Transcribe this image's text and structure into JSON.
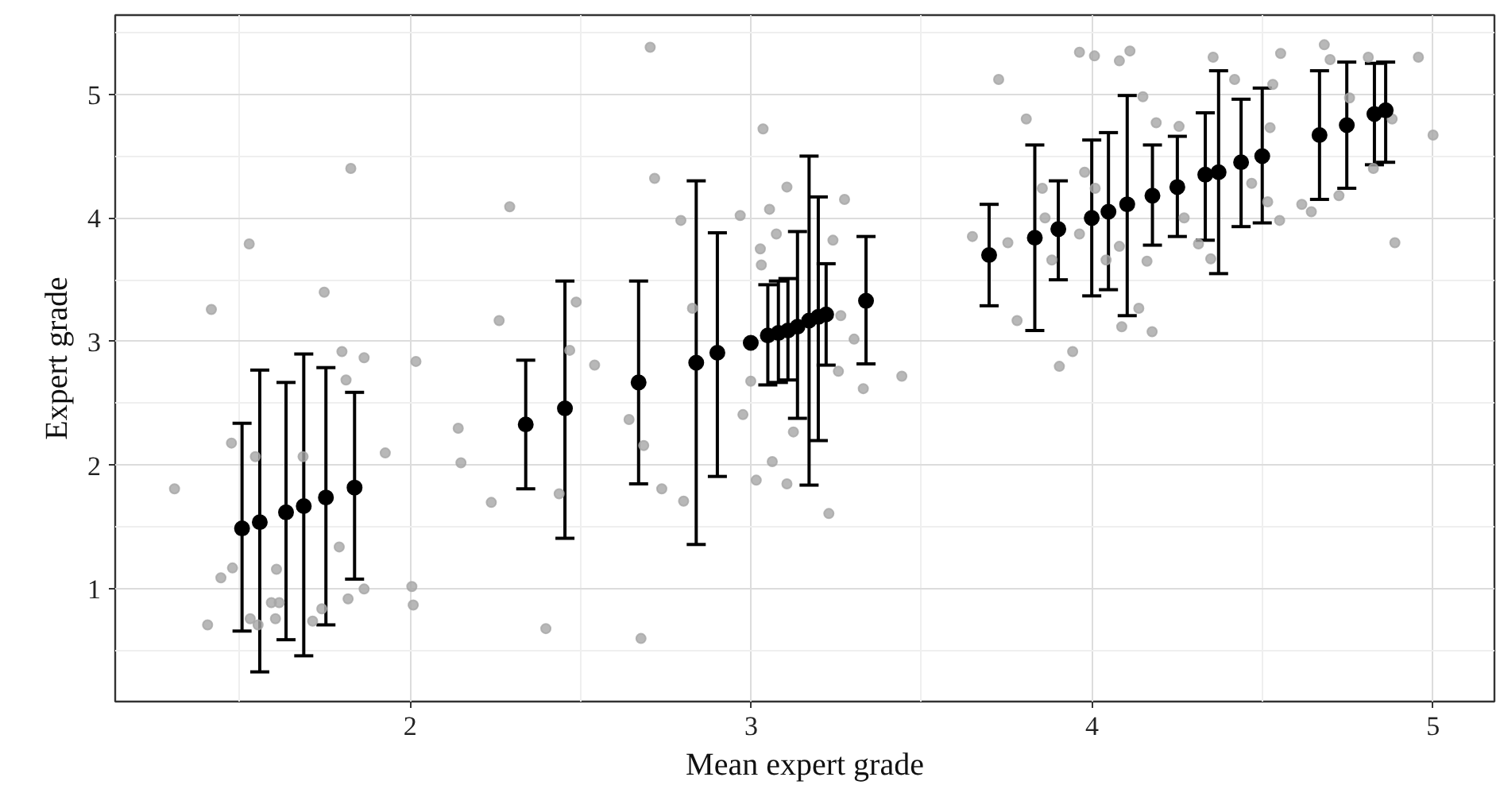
{
  "chart_data": {
    "type": "scatter",
    "xlabel": "Mean expert grade",
    "ylabel": "Expert grade",
    "xlim": [
      1.135,
      5.18
    ],
    "ylim": [
      0.09,
      5.64
    ],
    "xticks": [
      2,
      3,
      4,
      5
    ],
    "yticks": [
      1,
      2,
      3,
      4,
      5
    ],
    "grid": true,
    "marker": "circle",
    "series": [
      {
        "color": "#a6a6a6",
        "x": [
          1.309,
          1.417,
          1.528,
          1.476,
          1.479,
          1.445,
          1.406,
          1.531,
          1.554,
          1.608,
          1.593,
          1.616,
          1.605,
          1.748,
          1.826,
          1.8,
          1.812,
          1.865,
          1.792,
          1.818,
          1.865,
          1.714,
          1.741,
          1.686,
          1.546,
          1.927,
          2.017,
          2.005,
          2.009,
          2.141,
          2.149,
          2.238,
          2.261,
          2.292,
          2.398,
          2.437,
          2.704,
          2.717,
          2.487,
          2.468,
          2.541,
          2.642,
          2.685,
          2.738,
          2.802,
          2.677,
          2.794,
          2.968,
          3.035,
          3.105,
          3.054,
          3.074,
          3.027,
          3.03,
          3.274,
          3.24,
          3.263,
          3.302,
          3.256,
          3.329,
          3.442,
          2.999,
          2.976,
          3.015,
          3.062,
          3.105,
          3.124,
          3.228,
          2.828,
          3.726,
          3.807,
          3.649,
          3.753,
          3.78,
          3.904,
          3.943,
          3.854,
          3.862,
          3.882,
          3.963,
          4.007,
          4.08,
          4.111,
          3.978,
          4.009,
          3.963,
          4.08,
          4.041,
          4.087,
          4.137,
          4.176,
          4.161,
          4.149,
          4.188,
          4.255,
          4.27,
          4.312,
          4.348,
          4.355,
          4.418,
          4.468,
          4.515,
          4.55,
          4.53,
          4.553,
          4.522,
          4.615,
          4.643,
          4.724,
          4.681,
          4.698,
          4.755,
          4.81,
          4.825,
          4.88,
          4.888,
          4.957,
          5.0
        ],
        "values": [
          1.81,
          3.26,
          3.79,
          2.18,
          1.17,
          1.09,
          0.71,
          0.76,
          0.71,
          1.16,
          0.89,
          0.89,
          0.76,
          3.4,
          4.4,
          2.92,
          2.69,
          2.87,
          1.34,
          0.92,
          1.0,
          0.74,
          0.84,
          2.07,
          2.07,
          2.1,
          2.84,
          1.02,
          0.87,
          2.3,
          2.02,
          1.7,
          3.17,
          4.09,
          0.68,
          1.77,
          5.38,
          4.32,
          3.32,
          2.93,
          2.81,
          2.37,
          2.16,
          1.81,
          1.71,
          0.6,
          3.98,
          4.02,
          4.72,
          4.25,
          4.07,
          3.87,
          3.75,
          3.62,
          4.15,
          3.82,
          3.21,
          3.02,
          2.76,
          2.62,
          2.72,
          2.68,
          2.41,
          1.88,
          2.03,
          1.85,
          2.27,
          1.61,
          3.27,
          5.12,
          4.8,
          3.85,
          3.8,
          3.17,
          2.8,
          2.92,
          4.24,
          4.0,
          3.66,
          5.34,
          5.31,
          5.27,
          5.35,
          4.37,
          4.24,
          3.87,
          3.77,
          3.66,
          3.12,
          3.27,
          3.08,
          3.65,
          4.98,
          4.77,
          4.74,
          4.0,
          3.79,
          3.67,
          5.3,
          5.12,
          4.28,
          4.13,
          3.98,
          5.08,
          5.33,
          4.73,
          4.11,
          4.05,
          4.18,
          5.4,
          5.28,
          4.97,
          5.3,
          4.4,
          4.8,
          3.8,
          5.3,
          4.67
        ]
      },
      {
        "color": "#000000",
        "x": [
          1.507,
          1.559,
          1.636,
          1.688,
          1.753,
          1.837,
          2.339,
          2.454,
          2.67,
          2.839,
          2.901,
          2.999,
          3.049,
          3.08,
          3.108,
          3.136,
          3.17,
          3.197,
          3.22,
          3.337,
          3.698,
          3.832,
          3.901,
          3.999,
          4.048,
          4.103,
          4.177,
          4.25,
          4.332,
          4.371,
          4.437,
          4.499,
          4.667,
          4.747,
          4.828,
          4.861
        ],
        "values": [
          1.49,
          1.54,
          1.62,
          1.67,
          1.74,
          1.82,
          2.33,
          2.46,
          2.67,
          2.83,
          2.91,
          2.99,
          3.05,
          3.07,
          3.09,
          3.12,
          3.17,
          3.2,
          3.22,
          3.33,
          3.7,
          3.84,
          3.91,
          4.0,
          4.05,
          4.11,
          4.18,
          4.25,
          4.35,
          4.37,
          4.45,
          4.5,
          4.67,
          4.75,
          4.84,
          4.87
        ],
        "errors": [
          [
            0.66,
            2.34
          ],
          [
            0.33,
            2.77
          ],
          [
            0.59,
            2.67
          ],
          [
            0.46,
            2.9
          ],
          [
            0.71,
            2.79
          ],
          [
            1.08,
            2.59
          ],
          [
            1.81,
            2.85
          ],
          [
            1.41,
            3.49
          ],
          [
            1.85,
            3.49
          ],
          [
            1.36,
            4.3
          ],
          [
            1.91,
            3.88
          ],
          null,
          [
            2.65,
            3.46
          ],
          [
            2.67,
            3.49
          ],
          [
            2.69,
            3.51
          ],
          [
            2.38,
            3.89
          ],
          [
            1.84,
            4.5
          ],
          [
            2.2,
            4.17
          ],
          [
            2.81,
            3.63
          ],
          [
            2.82,
            3.85
          ],
          [
            3.29,
            4.11
          ],
          [
            3.09,
            4.59
          ],
          [
            3.5,
            4.3
          ],
          [
            3.37,
            4.63
          ],
          [
            3.42,
            4.69
          ],
          [
            3.21,
            4.99
          ],
          [
            3.78,
            4.59
          ],
          [
            3.85,
            4.66
          ],
          [
            3.82,
            4.85
          ],
          [
            3.55,
            5.19
          ],
          [
            3.93,
            4.96
          ],
          [
            3.96,
            5.05
          ],
          [
            4.15,
            5.19
          ],
          [
            4.24,
            5.26
          ],
          [
            4.43,
            5.25
          ],
          [
            4.45,
            5.26
          ]
        ]
      }
    ]
  }
}
